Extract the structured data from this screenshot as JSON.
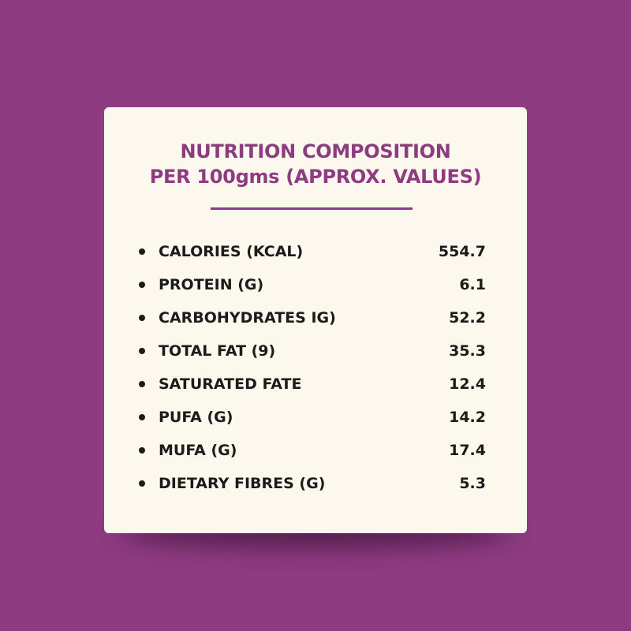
{
  "title": {
    "line1": "NUTRITION COMPOSITION",
    "line2": "PER 100gms (APPROX. VALUES)"
  },
  "nutrients": [
    {
      "label": "CALORIES (KCAL)",
      "value": "554.7"
    },
    {
      "label": "PROTEIN (G)",
      "value": "6.1"
    },
    {
      "label": "CARBOHYDRATES IG)",
      "value": "52.2"
    },
    {
      "label": "TOTAL FAT (9)",
      "value": "35.3"
    },
    {
      "label": "SATURATED FATE",
      "value": "12.4"
    },
    {
      "label": "PUFA (G)",
      "value": "14.2"
    },
    {
      "label": "MUFA (G)",
      "value": "17.4"
    },
    {
      "label": "DIETARY FIBRES (G)",
      "value": "5.3"
    }
  ],
  "colors": {
    "background": "#8e3b82",
    "card": "#fcf8ee",
    "accent": "#8e3b82",
    "text": "#1b1b1b"
  }
}
